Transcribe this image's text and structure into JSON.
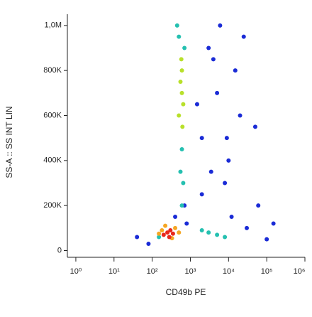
{
  "chart_data": {
    "type": "scatter",
    "xlabel": "CD49b PE",
    "ylabel": "SS-A :: SS INT LIN",
    "xscale": "log",
    "xlim": [
      0.6,
      1000000
    ],
    "xticks": [
      {
        "value": 1,
        "label": "10⁰"
      },
      {
        "value": 10,
        "label": "10¹"
      },
      {
        "value": 100,
        "label": "10²"
      },
      {
        "value": 1000,
        "label": "10³"
      },
      {
        "value": 10000,
        "label": "10⁴"
      },
      {
        "value": 100000,
        "label": "10⁵"
      },
      {
        "value": 1000000,
        "label": "10⁶"
      }
    ],
    "ylim": [
      -30000,
      1050000
    ],
    "yticks": [
      0,
      {
        "value": 200000,
        "label": "200K"
      },
      {
        "value": 400000,
        "label": "400K"
      },
      {
        "value": 600000,
        "label": "600K"
      },
      {
        "value": 800000,
        "label": "800K"
      },
      {
        "value": 1000000,
        "label": "1,0M"
      }
    ],
    "series": [
      {
        "color": "#1a2bd6",
        "x": [
          2000,
          5000,
          10000,
          3000,
          20000,
          8000,
          50000,
          40,
          80,
          30000,
          100000,
          700,
          800,
          4000,
          15000,
          2000,
          60000,
          6000,
          400,
          25000,
          1500,
          12000,
          3500,
          150000,
          9000
        ],
        "values": [
          500000,
          700000,
          400000,
          900000,
          600000,
          300000,
          550000,
          60000,
          30000,
          100000,
          50000,
          200000,
          120000,
          850000,
          800000,
          250000,
          200000,
          1000000,
          150000,
          950000,
          650000,
          150000,
          350000,
          120000,
          500000
        ]
      },
      {
        "color": "#25c0b0",
        "x": [
          600,
          550,
          700,
          500,
          600,
          3000,
          5000,
          150,
          650,
          450,
          2000,
          8000
        ],
        "values": [
          450000,
          350000,
          900000,
          950000,
          200000,
          80000,
          70000,
          60000,
          300000,
          1000000,
          90000,
          60000
        ]
      },
      {
        "color": "#b8e02a",
        "x": [
          600,
          550,
          650,
          600,
          500,
          620,
          580
        ],
        "values": [
          700000,
          750000,
          650000,
          800000,
          600000,
          550000,
          850000
        ]
      },
      {
        "color": "#f5a623",
        "x": [
          180,
          400,
          220,
          500,
          150,
          330
        ],
        "values": [
          90000,
          100000,
          110000,
          80000,
          75000,
          55000
        ]
      },
      {
        "color": "#e8281c",
        "x": [
          250,
          300,
          200,
          350,
          280
        ],
        "values": [
          80000,
          90000,
          70000,
          75000,
          60000
        ]
      }
    ]
  }
}
